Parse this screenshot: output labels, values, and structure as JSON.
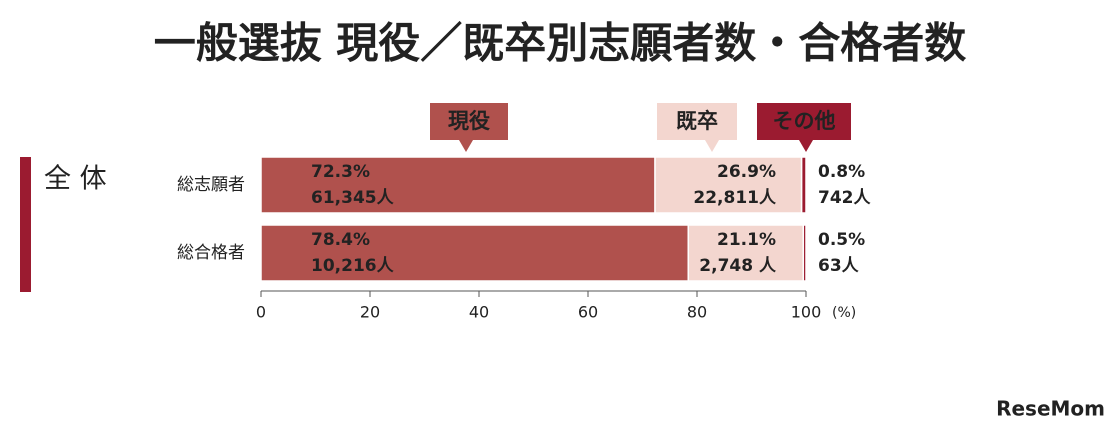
{
  "chart_data": {
    "type": "bar",
    "orientation": "horizontal",
    "stacked": true,
    "title": "一般選抜 現役／既卒別志願者数・合格者数",
    "group_label": "全 体",
    "categories": [
      "総志願者",
      "総合格者"
    ],
    "series": [
      {
        "name": "現役",
        "color": "#b0514d",
        "values": [
          72.3,
          78.4
        ],
        "value_labels": [
          "72.3%",
          "78.4%"
        ],
        "count_labels": [
          "61,345人",
          "10,216人"
        ]
      },
      {
        "name": "既卒",
        "color": "#f3d6cf",
        "values": [
          26.9,
          21.1
        ],
        "value_labels": [
          "26.9%",
          "21.1%"
        ],
        "count_labels": [
          "22,811人",
          "2,748 人"
        ]
      },
      {
        "name": "その他",
        "color": "#9b1b30",
        "values": [
          0.8,
          0.5
        ],
        "value_labels": [
          "0.8%",
          "0.5%"
        ],
        "count_labels": [
          "742人",
          "63人"
        ]
      }
    ],
    "xlim": [
      0,
      100
    ],
    "xticks": [
      0,
      20,
      40,
      60,
      80,
      100
    ],
    "x_unit": "(%)"
  },
  "watermark": "ReseMom"
}
